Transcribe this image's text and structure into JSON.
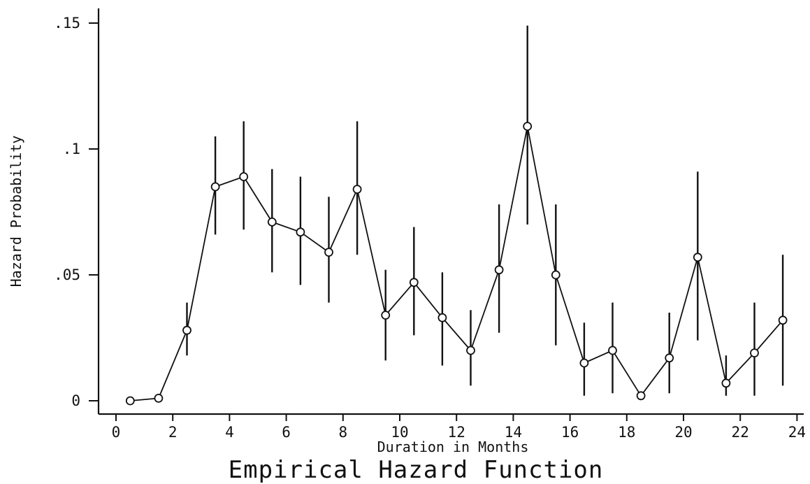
{
  "chart_data": {
    "type": "line",
    "title": "Empirical Hazard Function",
    "xlabel": "Duration in Months",
    "ylabel": "Hazard Probability",
    "xlim": [
      0,
      24
    ],
    "ylim": [
      0,
      0.15
    ],
    "x_ticks": [
      "0",
      "2",
      "4",
      "6",
      "8",
      "10",
      "12",
      "14",
      "16",
      "18",
      "20",
      "22",
      "24"
    ],
    "y_ticks": [
      "0",
      ".05",
      ".1",
      ".15"
    ],
    "grid": false,
    "legend": "none",
    "markers": "hollow-circle",
    "error_bars": true,
    "series": [
      {
        "x": [
          0.5,
          1.5,
          2.5,
          3.5,
          4.5,
          5.5,
          6.5,
          7.5,
          8.5,
          9.5,
          10.5,
          11.5,
          12.5,
          13.5,
          14.5,
          15.5,
          16.5,
          17.5,
          18.5,
          19.5,
          20.5,
          21.5,
          22.5,
          23.5
        ],
        "y": [
          0.0,
          0.001,
          0.028,
          0.085,
          0.089,
          0.071,
          0.067,
          0.059,
          0.084,
          0.034,
          0.047,
          0.033,
          0.02,
          0.052,
          0.109,
          0.05,
          0.015,
          0.02,
          0.002,
          0.017,
          0.057,
          0.007,
          0.019,
          0.032
        ],
        "lower": [
          null,
          null,
          0.018,
          0.066,
          0.068,
          0.051,
          0.046,
          0.039,
          0.058,
          0.016,
          0.026,
          0.014,
          0.006,
          0.027,
          0.07,
          0.022,
          0.002,
          0.003,
          null,
          0.003,
          0.024,
          0.002,
          0.002,
          0.006
        ],
        "upper": [
          null,
          null,
          0.039,
          0.105,
          0.111,
          0.092,
          0.089,
          0.081,
          0.111,
          0.052,
          0.069,
          0.051,
          0.036,
          0.078,
          0.149,
          0.078,
          0.031,
          0.039,
          null,
          0.035,
          0.091,
          0.018,
          0.039,
          0.058
        ]
      }
    ]
  }
}
